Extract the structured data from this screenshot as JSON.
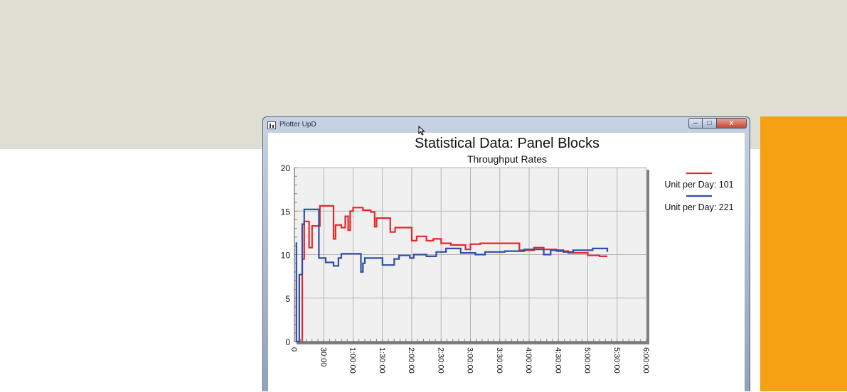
{
  "window": {
    "title": "Plotter UpD",
    "minimize_glyph": "–",
    "maximize_glyph": "□",
    "close_glyph": "x"
  },
  "colors": {
    "background_top": "#dfded3",
    "orange_panel": "#f5a111",
    "plot_area": "#f0f0f0",
    "series_101": "#e8262b",
    "series_221": "#2f4fa6"
  },
  "chart_data": {
    "type": "line",
    "title": "Statistical Data: Panel Blocks",
    "subtitle": "Throughput Rates",
    "xlabel": "",
    "ylabel": "",
    "xlim": [
      0,
      360
    ],
    "ylim": [
      0,
      20
    ],
    "x_tick_values": [
      0,
      30,
      60,
      90,
      120,
      150,
      180,
      210,
      240,
      270,
      300,
      330,
      360
    ],
    "x_tick_labels": [
      "0",
      "30:00",
      "1:00:00",
      "1:30:00",
      "2:00:00",
      "2:30:00",
      "3:00:00",
      "3:30:00",
      "4:00:00",
      "4:30:00",
      "5:00:00",
      "5:30:00",
      "6:00:00"
    ],
    "y_tick_values": [
      0,
      5,
      10,
      15,
      20
    ],
    "y_tick_labels": [
      "0",
      "5",
      "10",
      "15",
      "20"
    ],
    "grid": true,
    "legend_position": "right",
    "series": [
      {
        "name": "Unit per Day: 101",
        "color": "#e8262b",
        "points": [
          [
            8,
            0
          ],
          [
            8,
            9.5
          ],
          [
            10,
            9.5
          ],
          [
            10,
            13.8
          ],
          [
            15,
            13.8
          ],
          [
            15,
            10.8
          ],
          [
            18,
            10.8
          ],
          [
            18,
            13.3
          ],
          [
            26,
            13.3
          ],
          [
            26,
            15.6
          ],
          [
            40,
            15.6
          ],
          [
            40,
            11.8
          ],
          [
            42,
            11.8
          ],
          [
            42,
            13.4
          ],
          [
            48,
            13.4
          ],
          [
            48,
            13.1
          ],
          [
            52,
            13.1
          ],
          [
            52,
            14.4
          ],
          [
            55,
            14.4
          ],
          [
            55,
            12.8
          ],
          [
            57,
            12.8
          ],
          [
            57,
            15.0
          ],
          [
            60,
            15.0
          ],
          [
            60,
            15.4
          ],
          [
            70,
            15.4
          ],
          [
            70,
            15.1
          ],
          [
            78,
            15.1
          ],
          [
            78,
            14.9
          ],
          [
            82,
            14.9
          ],
          [
            82,
            13.2
          ],
          [
            84,
            13.2
          ],
          [
            84,
            14.2
          ],
          [
            98,
            14.2
          ],
          [
            98,
            12.6
          ],
          [
            103,
            12.6
          ],
          [
            103,
            13.1
          ],
          [
            120,
            13.1
          ],
          [
            120,
            11.6
          ],
          [
            125,
            11.6
          ],
          [
            125,
            12.1
          ],
          [
            135,
            12.1
          ],
          [
            135,
            11.6
          ],
          [
            142,
            11.6
          ],
          [
            142,
            11.8
          ],
          [
            150,
            11.8
          ],
          [
            150,
            11.3
          ],
          [
            160,
            11.3
          ],
          [
            160,
            11.1
          ],
          [
            175,
            11.1
          ],
          [
            175,
            10.6
          ],
          [
            180,
            10.6
          ],
          [
            180,
            11.2
          ],
          [
            190,
            11.2
          ],
          [
            190,
            11.3
          ],
          [
            230,
            11.3
          ],
          [
            230,
            10.5
          ],
          [
            245,
            10.5
          ],
          [
            245,
            10.8
          ],
          [
            255,
            10.8
          ],
          [
            255,
            10.6
          ],
          [
            268,
            10.6
          ],
          [
            268,
            10.4
          ],
          [
            280,
            10.4
          ],
          [
            280,
            10.2
          ],
          [
            300,
            10.2
          ],
          [
            300,
            9.9
          ],
          [
            312,
            9.9
          ],
          [
            312,
            9.8
          ],
          [
            320,
            9.8
          ]
        ]
      },
      {
        "name": "Unit per Day: 221",
        "color": "#2f4fa6",
        "points": [
          [
            2,
            11.4
          ],
          [
            2,
            0
          ],
          [
            5,
            0
          ],
          [
            5,
            7.7
          ],
          [
            8,
            7.7
          ],
          [
            8,
            13.5
          ],
          [
            10,
            13.5
          ],
          [
            10,
            15.2
          ],
          [
            25,
            15.2
          ],
          [
            25,
            9.6
          ],
          [
            32,
            9.6
          ],
          [
            32,
            9.1
          ],
          [
            40,
            9.1
          ],
          [
            40,
            8.7
          ],
          [
            45,
            8.7
          ],
          [
            45,
            9.6
          ],
          [
            48,
            9.6
          ],
          [
            48,
            10.1
          ],
          [
            68,
            10.1
          ],
          [
            68,
            8.0
          ],
          [
            70,
            8.0
          ],
          [
            70,
            9.0
          ],
          [
            72,
            9.0
          ],
          [
            72,
            9.6
          ],
          [
            90,
            9.6
          ],
          [
            90,
            8.8
          ],
          [
            102,
            8.8
          ],
          [
            102,
            9.5
          ],
          [
            107,
            9.5
          ],
          [
            107,
            9.9
          ],
          [
            118,
            9.9
          ],
          [
            118,
            9.6
          ],
          [
            122,
            9.6
          ],
          [
            122,
            10.0
          ],
          [
            135,
            10.0
          ],
          [
            135,
            9.8
          ],
          [
            145,
            9.8
          ],
          [
            145,
            10.3
          ],
          [
            155,
            10.3
          ],
          [
            155,
            10.7
          ],
          [
            170,
            10.7
          ],
          [
            170,
            10.2
          ],
          [
            185,
            10.2
          ],
          [
            185,
            10.0
          ],
          [
            195,
            10.0
          ],
          [
            195,
            10.3
          ],
          [
            215,
            10.3
          ],
          [
            215,
            10.4
          ],
          [
            235,
            10.4
          ],
          [
            235,
            10.6
          ],
          [
            255,
            10.6
          ],
          [
            255,
            10.0
          ],
          [
            262,
            10.0
          ],
          [
            262,
            10.5
          ],
          [
            275,
            10.5
          ],
          [
            275,
            10.3
          ],
          [
            285,
            10.3
          ],
          [
            285,
            10.5
          ],
          [
            305,
            10.5
          ],
          [
            305,
            10.7
          ],
          [
            320,
            10.7
          ],
          [
            320,
            10.3
          ]
        ]
      }
    ]
  }
}
